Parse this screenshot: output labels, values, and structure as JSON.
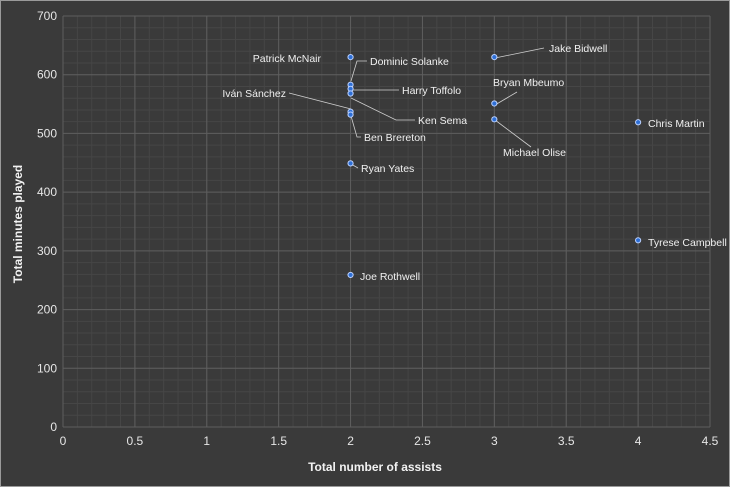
{
  "chart_data": {
    "type": "scatter",
    "xlabel": "Total number of assists",
    "ylabel": "Total minutes played",
    "xlim": [
      0,
      4.5
    ],
    "ylim": [
      0,
      700
    ],
    "xticks": [
      "0",
      "0.5",
      "1",
      "1.5",
      "2",
      "2.5",
      "3",
      "3.5",
      "4",
      "4.5"
    ],
    "yticks": [
      "0",
      "100",
      "200",
      "300",
      "400",
      "500",
      "600",
      "700"
    ],
    "grid": true,
    "colors": {
      "background": "#3a3a3a",
      "point": "#2e6fd6",
      "text": "#e6e6e6"
    },
    "points": [
      {
        "label": "Patrick McNair",
        "x": 2,
        "y": 630
      },
      {
        "label": "Dominic Solanke",
        "x": 2,
        "y": 583
      },
      {
        "label": "Harry Toffolo",
        "x": 2,
        "y": 576
      },
      {
        "label": "Iván Sánchez",
        "x": 2,
        "y": 568
      },
      {
        "label": "Ken Sema",
        "x": 2,
        "y": 537
      },
      {
        "label": "Ben Brereton",
        "x": 2,
        "y": 532
      },
      {
        "label": "Ryan Yates",
        "x": 2,
        "y": 449
      },
      {
        "label": "Joe Rothwell",
        "x": 2,
        "y": 259
      },
      {
        "label": "Jake Bidwell",
        "x": 3,
        "y": 630
      },
      {
        "label": "Bryan Mbeumo",
        "x": 3,
        "y": 551
      },
      {
        "label": "Michael Olise",
        "x": 3,
        "y": 524
      },
      {
        "label": "Chris Martin",
        "x": 4,
        "y": 519
      },
      {
        "label": "Tyrese Campbell",
        "x": 4,
        "y": 318
      }
    ]
  }
}
